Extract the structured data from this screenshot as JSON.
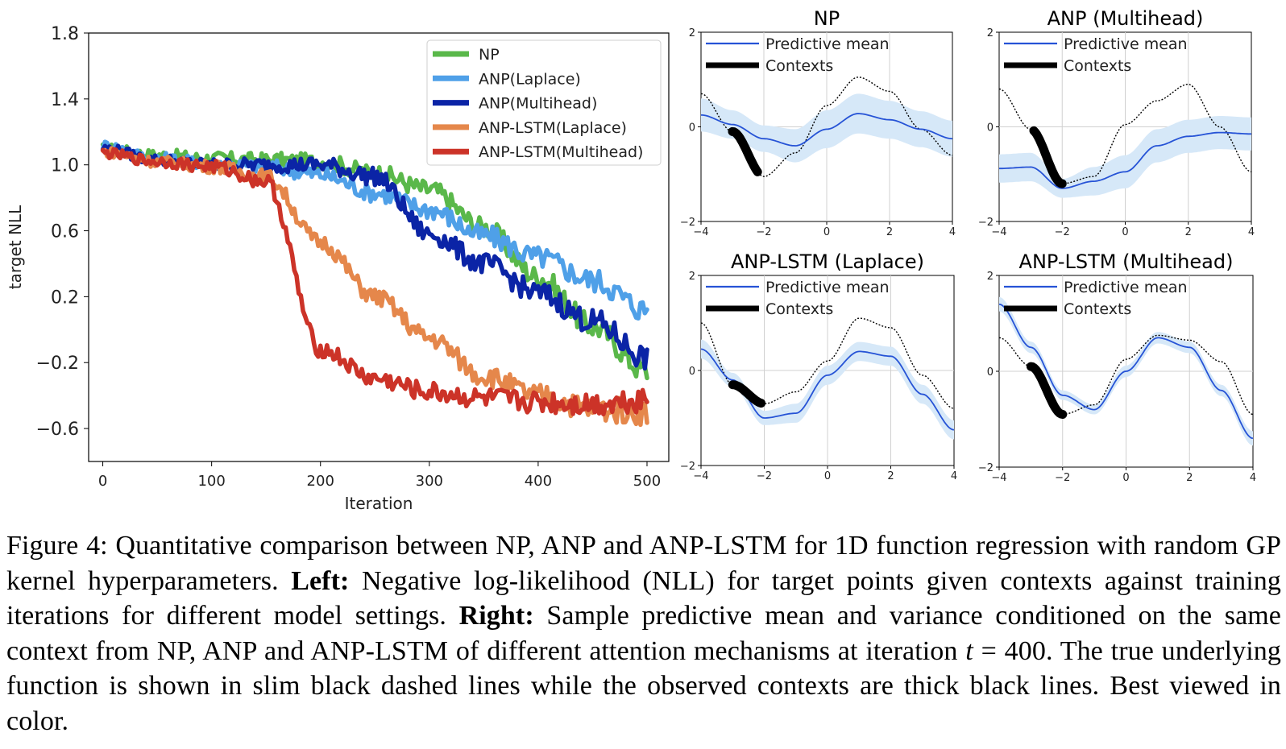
{
  "chart_data": [
    {
      "type": "line",
      "title": "",
      "xlabel": "Iteration",
      "ylabel": "target NLL",
      "xlim": [
        -13,
        520
      ],
      "ylim": [
        -0.8,
        1.8
      ],
      "xticks": [
        "0",
        "100",
        "200",
        "300",
        "400",
        "500"
      ],
      "yticks": [
        "1.8",
        "1.4",
        "1.0",
        "0.6",
        "0.2",
        "−0.2",
        "−0.6"
      ],
      "legend_position": "upper right",
      "grid": false,
      "series": [
        {
          "name": "NP",
          "color": "#5ab84a",
          "x": [
            0,
            50,
            100,
            150,
            200,
            250,
            300,
            350,
            400,
            450,
            500
          ],
          "values": [
            1.1,
            1.06,
            1.04,
            1.03,
            1.02,
            0.95,
            0.85,
            0.62,
            0.32,
            0.02,
            -0.25
          ]
        },
        {
          "name": "ANP(Laplace)",
          "color": "#4fa0e8",
          "x": [
            0,
            50,
            100,
            150,
            200,
            250,
            300,
            350,
            400,
            450,
            500
          ],
          "values": [
            1.12,
            1.04,
            1.01,
            0.99,
            0.94,
            0.83,
            0.73,
            0.57,
            0.44,
            0.3,
            0.12
          ]
        },
        {
          "name": "ANP(Multihead)",
          "color": "#0b24a6",
          "x": [
            0,
            50,
            100,
            150,
            200,
            250,
            300,
            350,
            400,
            450,
            500
          ],
          "values": [
            1.1,
            1.03,
            1.0,
            1.0,
            1.0,
            0.93,
            0.58,
            0.4,
            0.22,
            0.05,
            -0.17
          ]
        },
        {
          "name": "ANP-LSTM(Laplace)",
          "color": "#e5874b",
          "x": [
            0,
            50,
            100,
            150,
            200,
            250,
            300,
            350,
            400,
            450,
            500
          ],
          "values": [
            1.08,
            1.02,
            0.99,
            0.93,
            0.53,
            0.2,
            -0.05,
            -0.28,
            -0.4,
            -0.48,
            -0.5
          ]
        },
        {
          "name": "ANP-LSTM(Multihead)",
          "color": "#cc3328",
          "x": [
            0,
            50,
            100,
            150,
            200,
            250,
            300,
            350,
            400,
            450,
            500
          ],
          "values": [
            1.07,
            1.02,
            0.99,
            0.9,
            -0.12,
            -0.3,
            -0.38,
            -0.42,
            -0.44,
            -0.45,
            -0.42
          ]
        }
      ]
    },
    {
      "type": "line",
      "title": "NP",
      "xlim": [
        -4,
        4
      ],
      "ylim": [
        -2,
        2
      ],
      "xticks": [
        "−4",
        "−2",
        "0",
        "2",
        "4"
      ],
      "yticks": [
        "2",
        "0",
        "−2"
      ],
      "grid": true,
      "legend_position": "upper left",
      "legend": [
        "Predictive mean",
        "Contexts"
      ],
      "x": [
        -4,
        -3,
        -2,
        -1,
        0,
        1,
        2,
        3,
        4
      ],
      "true_function": [
        0.7,
        -0.1,
        -1.05,
        -0.55,
        0.45,
        1.05,
        0.75,
        -0.05,
        -0.6
      ],
      "predictive_mean": [
        0.25,
        0.05,
        -0.25,
        -0.4,
        -0.05,
        0.28,
        0.15,
        -0.05,
        -0.25
      ],
      "predictive_std": [
        0.35,
        0.3,
        0.28,
        0.35,
        0.4,
        0.42,
        0.4,
        0.38,
        0.38
      ],
      "contexts_x": [
        -3.0,
        -2.2
      ],
      "contexts_y": [
        0.0,
        -0.95
      ]
    },
    {
      "type": "line",
      "title": "ANP (Multihead)",
      "xlim": [
        -4,
        4
      ],
      "ylim": [
        -2,
        2
      ],
      "xticks": [
        "−4",
        "−2",
        "0",
        "2",
        "4"
      ],
      "yticks": [
        "2",
        "0",
        "−2"
      ],
      "grid": true,
      "legend_position": "upper left",
      "legend": [
        "Predictive mean",
        "Contexts"
      ],
      "x": [
        -4,
        -3,
        -2,
        -1,
        0,
        1,
        2,
        3,
        4
      ],
      "true_function": [
        0.8,
        -0.05,
        -1.2,
        -1.05,
        0.05,
        0.55,
        0.9,
        0.0,
        -0.95
      ],
      "predictive_mean": [
        -0.88,
        -0.85,
        -1.3,
        -1.15,
        -0.95,
        -0.4,
        -0.2,
        -0.12,
        -0.15
      ],
      "predictive_std": [
        0.3,
        0.3,
        0.2,
        0.3,
        0.35,
        0.35,
        0.35,
        0.35,
        0.35
      ],
      "contexts_x": [
        -2.9,
        -2.0
      ],
      "contexts_y": [
        -0.25,
        -1.1
      ]
    },
    {
      "type": "line",
      "title": "ANP-LSTM (Laplace)",
      "xlim": [
        -4,
        4
      ],
      "ylim": [
        -2,
        2
      ],
      "xticks": [
        "−4",
        "−2",
        "0",
        "2",
        "4"
      ],
      "yticks": [
        "2",
        "0",
        "−2"
      ],
      "grid": true,
      "legend_position": "upper left",
      "legend": [
        "Predictive mean",
        "Contexts"
      ],
      "x": [
        -4,
        -3,
        -2,
        -1,
        0,
        1,
        2,
        3,
        4
      ],
      "true_function": [
        1.0,
        -0.3,
        -0.7,
        -0.45,
        0.2,
        1.1,
        0.9,
        -0.1,
        -0.8
      ],
      "predictive_mean": [
        0.45,
        -0.2,
        -1.0,
        -0.9,
        -0.1,
        0.4,
        0.3,
        -0.5,
        -1.25
      ],
      "predictive_std": [
        0.2,
        0.15,
        0.15,
        0.2,
        0.2,
        0.2,
        0.2,
        0.2,
        0.2
      ],
      "contexts_x": [
        -3.0,
        -2.1
      ],
      "contexts_y": [
        -0.3,
        -0.75
      ]
    },
    {
      "type": "line",
      "title": "ANP-LSTM (Multihead)",
      "xlim": [
        -4,
        4
      ],
      "ylim": [
        -2,
        2
      ],
      "xticks": [
        "−4",
        "−2",
        "0",
        "2",
        "4"
      ],
      "yticks": [
        "2",
        "0",
        "−2"
      ],
      "grid": true,
      "legend_position": "upper left",
      "legend": [
        "Predictive mean",
        "Contexts"
      ],
      "x": [
        -4,
        -3,
        -2,
        -1,
        0,
        1,
        2,
        3,
        4
      ],
      "true_function": [
        0.7,
        0.1,
        -0.9,
        -0.7,
        0.25,
        0.75,
        0.65,
        0.2,
        -0.9
      ],
      "predictive_mean": [
        1.4,
        0.5,
        -0.5,
        -0.8,
        0.0,
        0.7,
        0.5,
        -0.4,
        -1.4
      ],
      "predictive_std": [
        0.15,
        0.12,
        0.1,
        0.1,
        0.12,
        0.12,
        0.12,
        0.12,
        0.15
      ],
      "contexts_x": [
        -3.0,
        -2.0
      ],
      "contexts_y": [
        -0.2,
        -0.9
      ]
    }
  ],
  "caption": {
    "p1": "Figure 4: Quantitative comparison between NP, ANP and ANP-LSTM for 1D function regression with random GP kernel hyperparameters. ",
    "b1": "Left:",
    "p2": " Negative log-likelihood (NLL) for target points given contexts against training iterations for different model settings. ",
    "b2": "Right:",
    "p3": " Sample predictive mean and variance conditioned on the same context from NP, ANP and ANP-LSTM of different attention mechanisms at iteration ",
    "m1": "t",
    "m2": " = 400",
    "p4": ". The true underlying function is shown in slim black dashed lines while the observed contexts are thick black lines. Best viewed in color."
  }
}
